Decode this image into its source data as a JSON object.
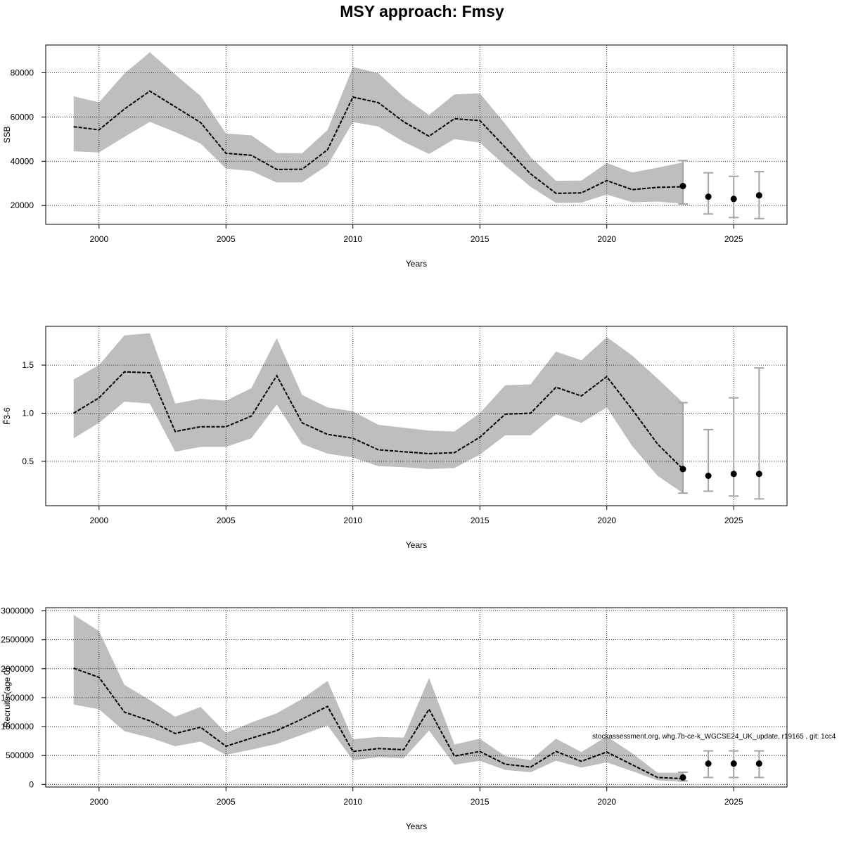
{
  "title": "MSY approach: Fmsy",
  "footnote": "stockassessment.org, whg.7b-ce-k_WGCSE24_UK_update, r19165 , git: 1cc4",
  "colors": {
    "band": "#bebebe",
    "line": "#000000",
    "grid": "#000000",
    "errorbar": "#a6a6a6",
    "point": "#000000"
  },
  "chart_data": [
    {
      "type": "area",
      "xlabel": "Years",
      "ylabel": "SSB",
      "xlim": [
        1997.9,
        2027.1
      ],
      "ylim": [
        11500,
        92500
      ],
      "x_ticks": [
        2000,
        2005,
        2010,
        2015,
        2020,
        2025
      ],
      "y_ticks": [
        20000,
        40000,
        60000,
        80000
      ],
      "y_tick_labels": [
        "20000",
        "40000",
        "60000",
        "80000"
      ],
      "grid": true,
      "years": [
        1999,
        2000,
        2001,
        2002,
        2003,
        2004,
        2005,
        2006,
        2007,
        2008,
        2009,
        2010,
        2011,
        2012,
        2013,
        2014,
        2015,
        2016,
        2017,
        2018,
        2019,
        2020,
        2021,
        2022,
        2023
      ],
      "estimate": [
        55600,
        54200,
        63600,
        71700,
        64600,
        57500,
        43600,
        42700,
        36300,
        36400,
        45200,
        69000,
        66500,
        57800,
        51300,
        59200,
        58400,
        46300,
        34300,
        25500,
        25700,
        31300,
        27200,
        28200,
        28500
      ],
      "lower": [
        44500,
        44000,
        51000,
        57800,
        53200,
        48000,
        36700,
        35600,
        30400,
        30500,
        38200,
        57700,
        55700,
        48800,
        43300,
        50000,
        48400,
        38000,
        28500,
        21200,
        21300,
        25000,
        21500,
        21800,
        20900
      ],
      "upper": [
        69300,
        66600,
        79600,
        89200,
        79200,
        69500,
        52500,
        51700,
        43700,
        43600,
        54100,
        82600,
        79800,
        69100,
        60900,
        70200,
        70700,
        56900,
        41900,
        31200,
        31300,
        39200,
        34900,
        37100,
        39500
      ],
      "forecast": [
        {
          "year": 2023,
          "value": 28800,
          "lower": 20700,
          "upper": 40300
        },
        {
          "year": 2024,
          "value": 24000,
          "lower": 16200,
          "upper": 34800
        },
        {
          "year": 2025,
          "value": 23000,
          "lower": 14600,
          "upper": 33200
        },
        {
          "year": 2026,
          "value": 24600,
          "lower": 14100,
          "upper": 35300
        }
      ]
    },
    {
      "type": "area",
      "xlabel": "Years",
      "ylabel": "F̄3-6",
      "xlim": [
        1997.9,
        2027.1
      ],
      "ylim": [
        0.0395,
        1.9025
      ],
      "x_ticks": [
        2000,
        2005,
        2010,
        2015,
        2020,
        2025
      ],
      "y_ticks": [
        0.5,
        1.0,
        1.5
      ],
      "y_tick_labels": [
        "0.5",
        "1.0",
        "1.5"
      ],
      "grid": true,
      "years": [
        1999,
        2000,
        2001,
        2002,
        2003,
        2004,
        2005,
        2006,
        2007,
        2008,
        2009,
        2010,
        2011,
        2012,
        2013,
        2014,
        2015,
        2016,
        2017,
        2018,
        2019,
        2020,
        2021,
        2022,
        2023
      ],
      "estimate": [
        1.0,
        1.16,
        1.43,
        1.42,
        0.81,
        0.86,
        0.86,
        0.97,
        1.39,
        0.9,
        0.78,
        0.74,
        0.62,
        0.6,
        0.58,
        0.59,
        0.75,
        0.99,
        1.0,
        1.27,
        1.18,
        1.38,
        1.04,
        0.68,
        0.42
      ],
      "lower": [
        0.74,
        0.9,
        1.12,
        1.1,
        0.6,
        0.65,
        0.65,
        0.74,
        1.09,
        0.68,
        0.58,
        0.54,
        0.45,
        0.44,
        0.42,
        0.43,
        0.57,
        0.77,
        0.77,
        0.99,
        0.9,
        1.06,
        0.66,
        0.35,
        0.17
      ],
      "upper": [
        1.35,
        1.5,
        1.81,
        1.83,
        1.1,
        1.15,
        1.13,
        1.26,
        1.78,
        1.19,
        1.06,
        1.02,
        0.88,
        0.85,
        0.82,
        0.81,
        1.0,
        1.29,
        1.3,
        1.64,
        1.55,
        1.79,
        1.6,
        1.36,
        1.11
      ],
      "forecast": [
        {
          "year": 2023,
          "value": 0.42,
          "lower": 0.17,
          "upper": 1.11
        },
        {
          "year": 2024,
          "value": 0.35,
          "lower": 0.19,
          "upper": 0.83
        },
        {
          "year": 2025,
          "value": 0.37,
          "lower": 0.14,
          "upper": 1.16
        },
        {
          "year": 2026,
          "value": 0.37,
          "lower": 0.11,
          "upper": 1.47
        }
      ]
    },
    {
      "type": "area",
      "xlabel": "Years",
      "ylabel": "Recruits (age 0)",
      "xlim": [
        1997.9,
        2027.1
      ],
      "ylim": [
        -45000,
        3055000
      ],
      "x_ticks": [
        2000,
        2005,
        2010,
        2015,
        2020,
        2025
      ],
      "y_ticks": [
        0,
        500000,
        1000000,
        1500000,
        2000000,
        2500000,
        3000000
      ],
      "y_tick_labels": [
        "0",
        "500000",
        "1000000",
        "1500000",
        "2000000",
        "2500000",
        "3000000"
      ],
      "grid": true,
      "years": [
        1999,
        2000,
        2001,
        2002,
        2003,
        2004,
        2005,
        2006,
        2007,
        2008,
        2009,
        2010,
        2011,
        2012,
        2013,
        2014,
        2015,
        2016,
        2017,
        2018,
        2019,
        2020,
        2021,
        2022,
        2023
      ],
      "estimate": [
        2010000,
        1850000,
        1250000,
        1100000,
        880000,
        990000,
        660000,
        800000,
        930000,
        1130000,
        1350000,
        570000,
        620000,
        600000,
        1300000,
        490000,
        570000,
        350000,
        300000,
        570000,
        400000,
        560000,
        340000,
        120000,
        100000
      ],
      "lower": [
        1380000,
        1300000,
        920000,
        810000,
        660000,
        740000,
        510000,
        600000,
        700000,
        860000,
        1020000,
        420000,
        470000,
        450000,
        930000,
        340000,
        410000,
        250000,
        210000,
        410000,
        290000,
        380000,
        230000,
        70000,
        50000
      ],
      "upper": [
        2930000,
        2650000,
        1720000,
        1460000,
        1170000,
        1340000,
        890000,
        1070000,
        1230000,
        1480000,
        1790000,
        780000,
        820000,
        810000,
        1840000,
        690000,
        790000,
        490000,
        420000,
        790000,
        560000,
        830000,
        540000,
        200000,
        200000
      ],
      "forecast": [
        {
          "year": 2023,
          "value": 120000,
          "lower": 60000,
          "upper": 210000
        },
        {
          "year": 2024,
          "value": 360000,
          "lower": 120000,
          "upper": 580000
        },
        {
          "year": 2025,
          "value": 360000,
          "lower": 120000,
          "upper": 580000
        },
        {
          "year": 2026,
          "value": 360000,
          "lower": 120000,
          "upper": 580000
        }
      ]
    }
  ]
}
